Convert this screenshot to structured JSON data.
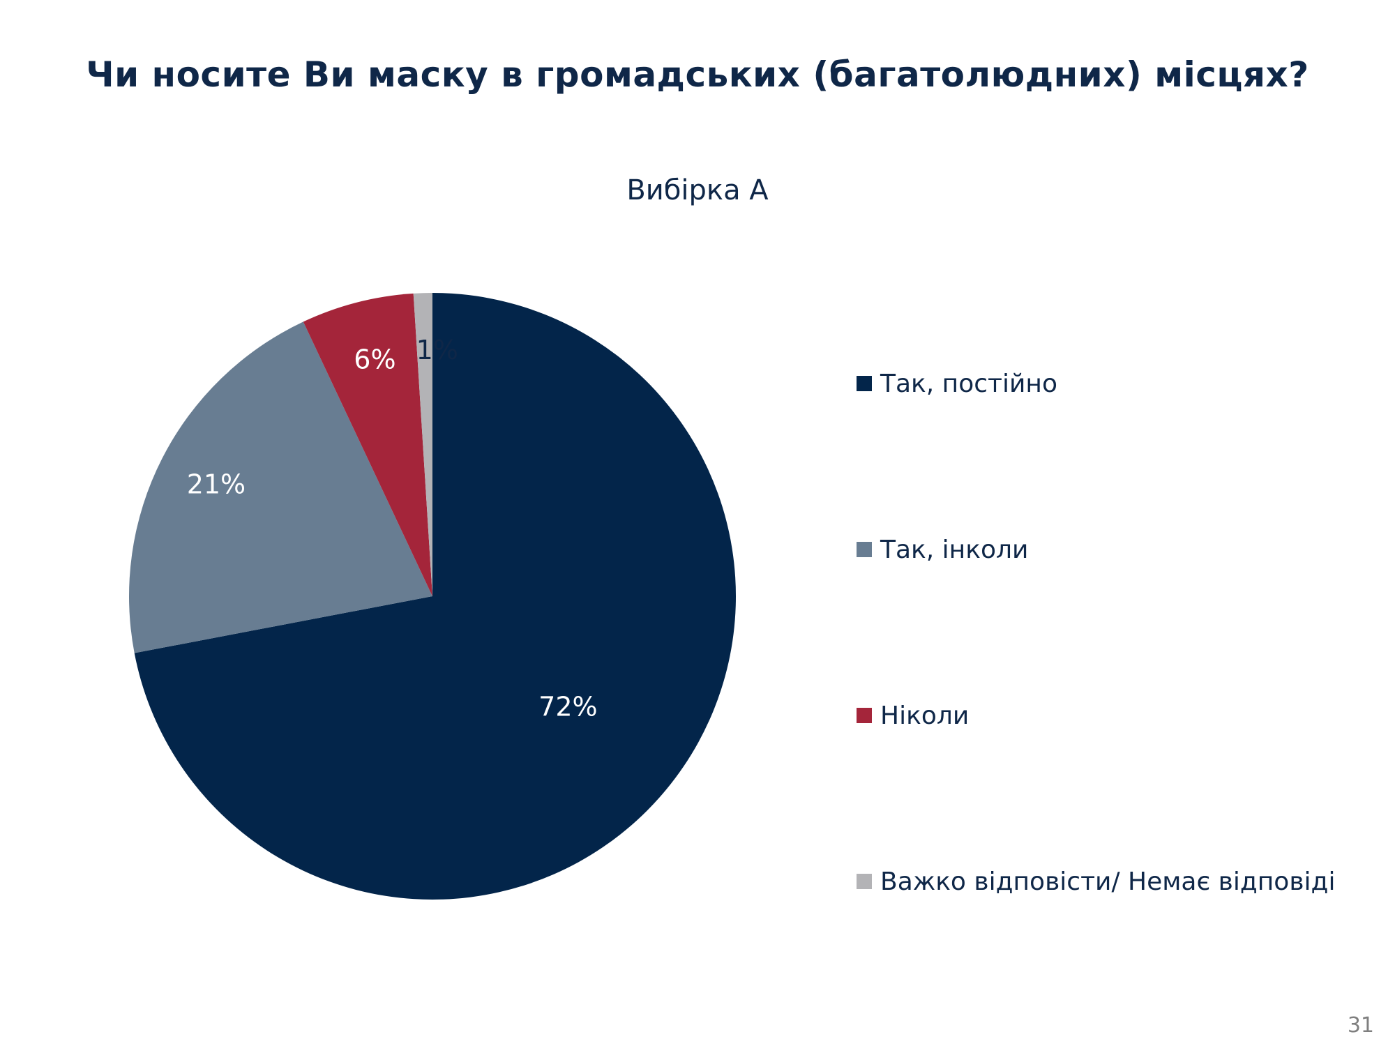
{
  "slide": {
    "title": "Чи носите Ви маску в громадських (багатолюдних) місцях?",
    "page_number": "31"
  },
  "chart_data": {
    "type": "pie",
    "title": "Вибірка А",
    "legend_position": "right",
    "start_angle_deg": 0,
    "direction": "clockwise",
    "categories": [
      "Так, постійно",
      "Так, інколи",
      "Ніколи",
      "Важко відповісти/ Немає відповіді"
    ],
    "values": [
      72,
      21,
      6,
      1
    ],
    "data_labels": [
      "72%",
      "21%",
      "6%",
      "1%"
    ],
    "colors": [
      "#03254a",
      "#687d92",
      "#a4253a",
      "#b3b3b6"
    ],
    "label_colors": [
      "#ffffff",
      "#ffffff",
      "#ffffff",
      "#0f2748"
    ]
  }
}
